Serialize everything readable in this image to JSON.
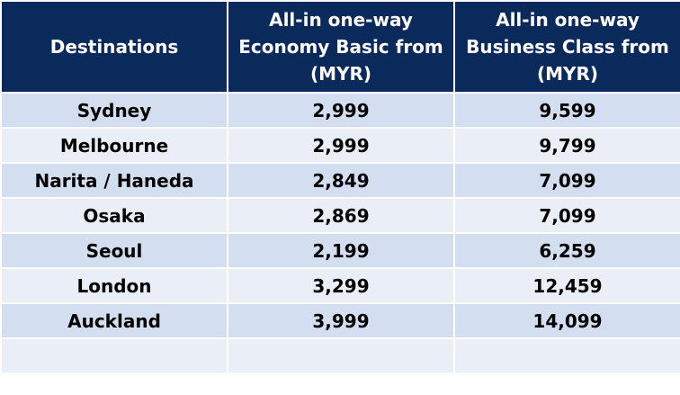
{
  "table": {
    "headers": [
      "Destinations",
      "All-in one-way Economy Basic from (MYR)",
      "All-in one-way Business Class from (MYR)"
    ],
    "rows": [
      [
        "Sydney",
        "2,999",
        "9,599"
      ],
      [
        "Melbourne",
        "2,999",
        "9,799"
      ],
      [
        "Narita / Haneda",
        "2,849",
        "7,099"
      ],
      [
        "Osaka",
        "2,869",
        "7,099"
      ],
      [
        "Seoul",
        "2,199",
        "6,259"
      ],
      [
        "London",
        "3,299",
        "12,459"
      ],
      [
        "Auckland",
        "3,999",
        "14,099"
      ]
    ]
  },
  "colors": {
    "header_bg": "#0b2a5c",
    "header_text": "#ffffff",
    "row_odd_bg": "#d3dff0",
    "row_even_bg": "#e9eef7"
  }
}
